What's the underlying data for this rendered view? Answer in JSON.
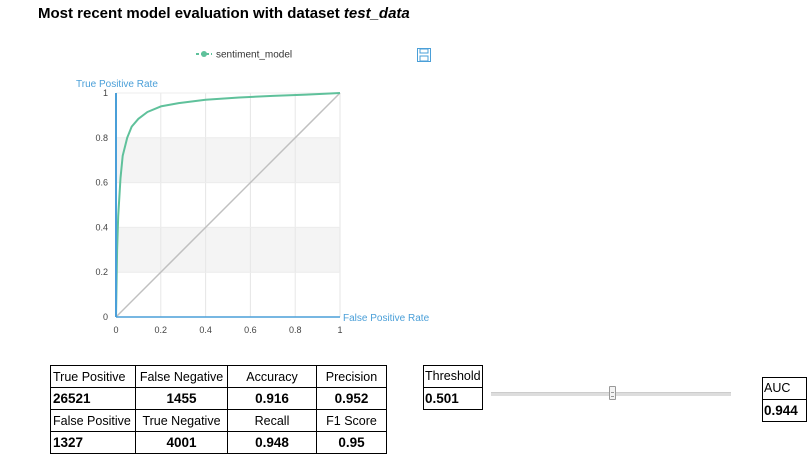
{
  "heading": {
    "prefix": "Most recent model evaluation with dataset ",
    "dataset": "test_data"
  },
  "chart_data": {
    "type": "line",
    "title": "",
    "xlabel": "False Positive Rate",
    "ylabel": "True Positive Rate",
    "xlim": [
      0,
      1
    ],
    "ylim": [
      0,
      1
    ],
    "x_ticks": [
      "0",
      "0.2",
      "0.4",
      "0.6",
      "0.8",
      "1"
    ],
    "y_ticks": [
      "0",
      "0.2",
      "0.4",
      "0.6",
      "0.8",
      "1"
    ],
    "grid": true,
    "legend_position": "top-center",
    "series": [
      {
        "name": "sentiment_model",
        "color": "#5fc19b",
        "x": [
          0,
          0.005,
          0.01,
          0.02,
          0.03,
          0.05,
          0.07,
          0.1,
          0.14,
          0.2,
          0.28,
          0.4,
          0.55,
          0.7,
          0.85,
          1
        ],
        "y": [
          0,
          0.3,
          0.45,
          0.62,
          0.72,
          0.8,
          0.85,
          0.885,
          0.915,
          0.94,
          0.955,
          0.97,
          0.98,
          0.987,
          0.993,
          1
        ]
      }
    ],
    "reference_line": {
      "x": [
        0,
        1
      ],
      "y": [
        0,
        1
      ],
      "color": "#c0c0c0"
    }
  },
  "metrics": {
    "headers_row1": [
      "True Positive",
      "False Negative",
      "Accuracy",
      "Precision"
    ],
    "values_row1": [
      "26521",
      "1455",
      "0.916",
      "0.952"
    ],
    "headers_row2": [
      "False Positive",
      "True Negative",
      "Recall",
      "F1 Score"
    ],
    "values_row2": [
      "1327",
      "4001",
      "0.948",
      "0.95"
    ]
  },
  "threshold": {
    "label": "Threshold",
    "value": "0.501",
    "slider_fraction": 0.501
  },
  "auc": {
    "label": "AUC",
    "value": "0.944"
  },
  "icons": {
    "save": "save-icon"
  },
  "colors": {
    "axis": "#4a9fd8",
    "series": "#5fc19b",
    "reference": "#c0c0c0"
  }
}
